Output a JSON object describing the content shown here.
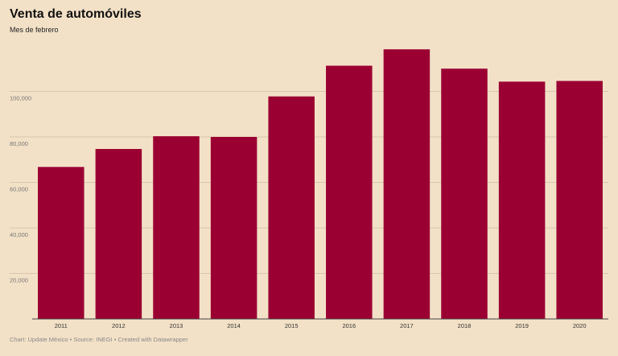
{
  "header": {
    "title": "Venta de automóviles",
    "subtitle": "Mes de febrero"
  },
  "footer": {
    "credit": "Chart: Update México • Source: INEGI • Created with Datawrapper"
  },
  "colors": {
    "background": "#f3e1c7",
    "bar": "#9b0032",
    "grid": "#d9c7ad",
    "axis": "#444444"
  },
  "chart_data": {
    "type": "bar",
    "title": "Venta de automóviles",
    "subtitle": "Mes de febrero",
    "xlabel": "",
    "ylabel": "",
    "categories": [
      "2011",
      "2012",
      "2013",
      "2014",
      "2015",
      "2016",
      "2017",
      "2018",
      "2019",
      "2020"
    ],
    "values": [
      66800,
      74700,
      80300,
      80000,
      97800,
      111300,
      118500,
      110000,
      104300,
      104600
    ],
    "ylim": [
      0,
      120000
    ],
    "yticks": [
      20000,
      40000,
      60000,
      80000,
      100000
    ],
    "ytick_labels": [
      "20,000",
      "40,000",
      "60,000",
      "80,000",
      "100,000"
    ],
    "grid": true,
    "legend": "none"
  }
}
